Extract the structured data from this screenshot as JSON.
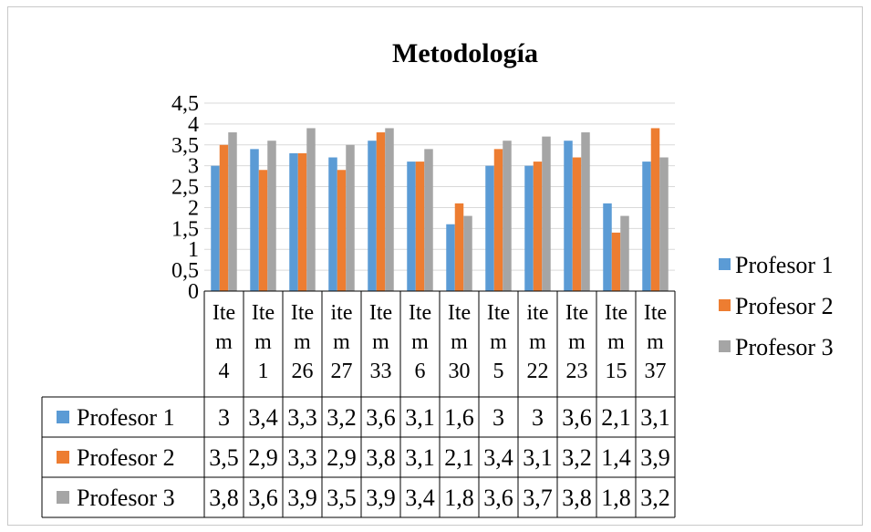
{
  "chart_data": {
    "type": "bar",
    "title": "Metodología",
    "categories": [
      [
        "Ite",
        "m",
        "4"
      ],
      [
        "Ite",
        "m",
        "1"
      ],
      [
        "Ite",
        "m",
        "26"
      ],
      [
        "ite",
        "m",
        "27"
      ],
      [
        "Ite",
        "m",
        "33"
      ],
      [
        "Ite",
        "m",
        "6"
      ],
      [
        "Ite",
        "m",
        "30"
      ],
      [
        "Ite",
        "m",
        "5"
      ],
      [
        "ite",
        "m",
        "22"
      ],
      [
        "Ite",
        "m",
        "23"
      ],
      [
        "Ite",
        "m",
        "15"
      ],
      [
        "Ite",
        "m",
        "37"
      ]
    ],
    "series": [
      {
        "name": "Profesor 1",
        "color": "#5b9bd5",
        "values": [
          3,
          3.4,
          3.3,
          3.2,
          3.6,
          3.1,
          1.6,
          3,
          3,
          3.6,
          2.1,
          3.1
        ],
        "labels": [
          "3",
          "3,4",
          "3,3",
          "3,2",
          "3,6",
          "3,1",
          "1,6",
          "3",
          "3",
          "3,6",
          "2,1",
          "3,1"
        ]
      },
      {
        "name": "Profesor 2",
        "color": "#ed7d31",
        "values": [
          3.5,
          2.9,
          3.3,
          2.9,
          3.8,
          3.1,
          2.1,
          3.4,
          3.1,
          3.2,
          1.4,
          3.9
        ],
        "labels": [
          "3,5",
          "2,9",
          "3,3",
          "2,9",
          "3,8",
          "3,1",
          "2,1",
          "3,4",
          "3,1",
          "3,2",
          "1,4",
          "3,9"
        ]
      },
      {
        "name": "Profesor 3",
        "color": "#a5a5a5",
        "values": [
          3.8,
          3.6,
          3.9,
          3.5,
          3.9,
          3.4,
          1.8,
          3.6,
          3.7,
          3.8,
          1.8,
          3.2
        ],
        "labels": [
          "3,8",
          "3,6",
          "3,9",
          "3,5",
          "3,9",
          "3,4",
          "1,8",
          "3,6",
          "3,7",
          "3,8",
          "1,8",
          "3,2"
        ]
      }
    ],
    "ylim": [
      0,
      4.5
    ],
    "yticks": [
      0,
      0.5,
      1,
      1.5,
      2,
      2.5,
      3,
      3.5,
      4,
      4.5
    ],
    "ytick_labels": [
      "0",
      "0,5",
      "1",
      "1,5",
      "2",
      "2,5",
      "3",
      "3,5",
      "4",
      "4,5"
    ],
    "grid": true,
    "legend": "right",
    "data_table": true
  }
}
